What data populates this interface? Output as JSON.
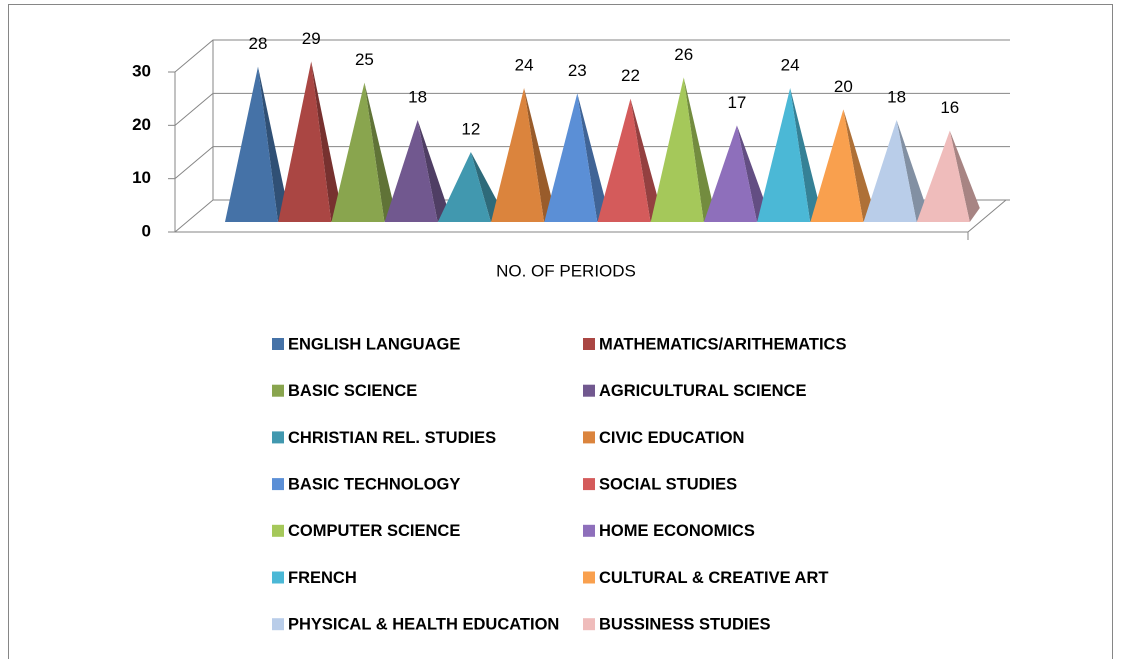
{
  "chart_data": {
    "type": "pyramid",
    "categories": [
      "NO. OF PERIODS"
    ],
    "series": [
      {
        "name": "ENGLISH LANGUAGE",
        "color": "#4572a7",
        "values": [
          28
        ]
      },
      {
        "name": "MATHEMATICS/ARITHEMATICS",
        "color": "#aa4643",
        "values": [
          29
        ]
      },
      {
        "name": "BASIC SCIENCE",
        "color": "#89a54e",
        "values": [
          25
        ]
      },
      {
        "name": "AGRICULTURAL SCIENCE",
        "color": "#71588f",
        "values": [
          18
        ]
      },
      {
        "name": "CHRISTIAN REL. STUDIES",
        "color": "#4198af",
        "values": [
          12
        ]
      },
      {
        "name": "CIVIC EDUCATION",
        "color": "#db843d",
        "values": [
          24
        ]
      },
      {
        "name": "BASIC TECHNOLOGY",
        "color": "#5b8fd6",
        "values": [
          23
        ]
      },
      {
        "name": "SOCIAL STUDIES",
        "color": "#d45b5b",
        "values": [
          22
        ]
      },
      {
        "name": "COMPUTER SCIENCE",
        "color": "#a5c85a",
        "values": [
          26
        ]
      },
      {
        "name": "HOME ECONOMICS",
        "color": "#8e6fbb",
        "values": [
          17
        ]
      },
      {
        "name": "FRENCH",
        "color": "#4bb8d6",
        "values": [
          24
        ]
      },
      {
        "name": "CULTURAL & CREATIVE ART",
        "color": "#f9a04e",
        "values": [
          20
        ]
      },
      {
        "name": "PHYSICAL & HEALTH EDUCATION",
        "color": "#b9cde9",
        "values": [
          18
        ]
      },
      {
        "name": "BUSSINESS STUDIES",
        "color": "#efbcbb",
        "values": [
          16
        ]
      }
    ],
    "ylim": [
      0,
      30
    ],
    "yticks": [
      0,
      10,
      20,
      30
    ],
    "grid": true,
    "legend": "bottom"
  }
}
